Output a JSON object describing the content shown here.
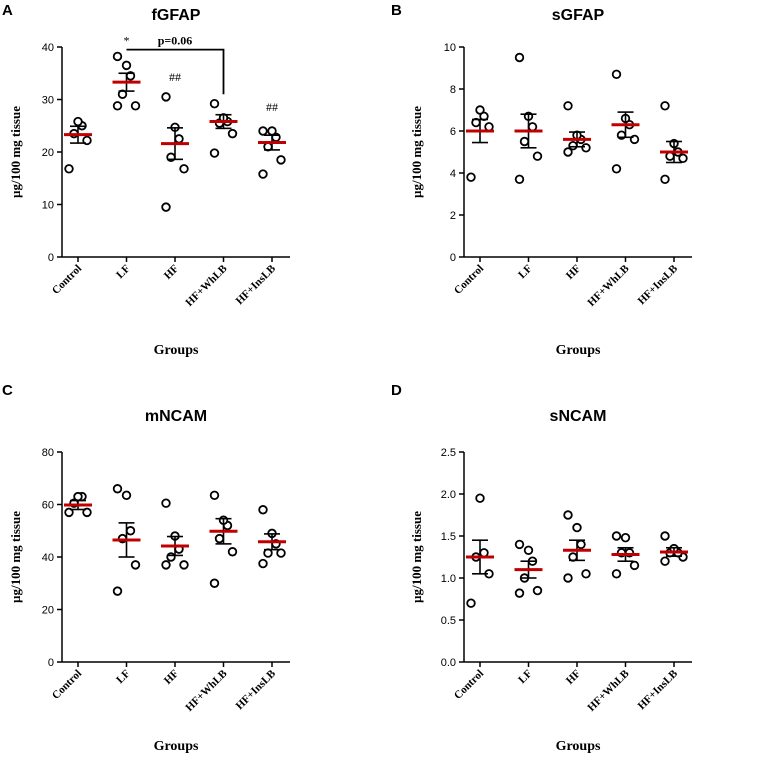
{
  "figure": {
    "categories": [
      "Control",
      "LF",
      "HF",
      "HF+WhLB",
      "HF+InsLB"
    ],
    "ylabel": "µg/100 mg tissue",
    "xlabel": "Groups",
    "mean_color": "#c00000",
    "error_color": "#000000",
    "point_color": "#000000"
  },
  "chart_data": [
    {
      "panel": "A",
      "type": "scatter",
      "title": "fGFAP",
      "xlabel": "Groups",
      "ylabel": "µg/100 mg tissue",
      "categories": [
        "Control",
        "LF",
        "HF",
        "HF+WhLB",
        "HF+InsLB"
      ],
      "ylim": [
        0,
        40
      ],
      "yticks": [
        0,
        10,
        20,
        30,
        40
      ],
      "ytick_labels": [
        "0",
        "10",
        "20",
        "30",
        "40"
      ],
      "points": [
        [
          16.8,
          22.2,
          23.5,
          25.0,
          25.8
        ],
        [
          28.8,
          28.8,
          31.0,
          34.5,
          36.5,
          38.2
        ],
        [
          9.5,
          16.8,
          19.0,
          22.5,
          24.7,
          30.5
        ],
        [
          19.8,
          23.5,
          25.5,
          25.8,
          26.5,
          29.2
        ],
        [
          15.8,
          18.5,
          21.0,
          22.8,
          24.0,
          24.0
        ]
      ],
      "mean": [
        23.3,
        33.3,
        21.6,
        25.8,
        21.8
      ],
      "sem": [
        1.6,
        1.7,
        3.0,
        1.3,
        1.4
      ],
      "annotations": [
        {
          "text": "*",
          "category": 1,
          "y": 40.5
        },
        {
          "text": "##",
          "category": 2,
          "y": 33.5
        },
        {
          "text": "##",
          "category": 4,
          "y": 27.8
        },
        {
          "text": "p=0.06",
          "from": 1,
          "to": 3,
          "y": 39.5,
          "drop_to": 31.0
        }
      ]
    },
    {
      "panel": "B",
      "type": "scatter",
      "title": "sGFAP",
      "xlabel": "Groups",
      "ylabel": "µg/100 mg tissue",
      "categories": [
        "Control",
        "LF",
        "HF",
        "HF+WhLB",
        "HF+InsLB"
      ],
      "ylim": [
        0,
        10
      ],
      "yticks": [
        0,
        2,
        4,
        6,
        8,
        10
      ],
      "ytick_labels": [
        "0",
        "2",
        "4",
        "6",
        "8",
        "10"
      ],
      "points": [
        [
          3.8,
          6.2,
          6.4,
          6.7,
          7.0
        ],
        [
          3.7,
          4.8,
          5.5,
          6.2,
          6.7,
          9.5
        ],
        [
          5.0,
          5.2,
          5.3,
          5.6,
          5.8,
          7.2
        ],
        [
          4.2,
          5.6,
          5.8,
          6.3,
          6.6,
          8.7
        ],
        [
          3.7,
          4.7,
          4.8,
          5.0,
          5.4,
          7.2
        ]
      ],
      "mean": [
        6.0,
        6.0,
        5.6,
        6.3,
        5.0
      ],
      "sem": [
        0.55,
        0.8,
        0.35,
        0.6,
        0.5
      ],
      "annotations": []
    },
    {
      "panel": "C",
      "type": "scatter",
      "title": "mNCAM",
      "xlabel": "Groups",
      "ylabel": "µg/100 mg tissue",
      "categories": [
        "Control",
        "LF",
        "HF",
        "HF+WhLB",
        "HF+InsLB"
      ],
      "ylim": [
        0,
        80
      ],
      "yticks": [
        0,
        20,
        40,
        60,
        80
      ],
      "ytick_labels": [
        "0",
        "20",
        "40",
        "60",
        "80"
      ],
      "points": [
        [
          57.0,
          57.0,
          60.5,
          63.0,
          63.0
        ],
        [
          27.0,
          37.0,
          47.0,
          50.0,
          63.5,
          66.0
        ],
        [
          37.0,
          37.0,
          40.0,
          43.0,
          48.0,
          60.5
        ],
        [
          30.0,
          42.0,
          47.0,
          52.0,
          54.0,
          63.5
        ],
        [
          37.5,
          41.5,
          41.5,
          45.0,
          49.0,
          58.0
        ]
      ],
      "mean": [
        59.8,
        46.5,
        44.2,
        49.8,
        45.8
      ],
      "sem": [
        1.7,
        6.5,
        3.6,
        4.8,
        3.0
      ],
      "annotations": []
    },
    {
      "panel": "D",
      "type": "scatter",
      "title": "sNCAM",
      "xlabel": "Groups",
      "ylabel": "µg/100 mg tissue",
      "categories": [
        "Control",
        "LF",
        "HF",
        "HF+WhLB",
        "HF+InsLB"
      ],
      "ylim": [
        0,
        2.5
      ],
      "yticks": [
        0,
        0.5,
        1.0,
        1.5,
        2.0,
        2.5
      ],
      "ytick_labels": [
        "0.0",
        "0.5",
        "1.0",
        "1.5",
        "2.0",
        "2.5"
      ],
      "points": [
        [
          0.7,
          1.05,
          1.25,
          1.3,
          1.95
        ],
        [
          0.82,
          0.85,
          1.0,
          1.2,
          1.33,
          1.4
        ],
        [
          1.0,
          1.05,
          1.25,
          1.4,
          1.6,
          1.75
        ],
        [
          1.05,
          1.15,
          1.3,
          1.3,
          1.48,
          1.5
        ],
        [
          1.2,
          1.25,
          1.3,
          1.3,
          1.35,
          1.5
        ]
      ],
      "mean": [
        1.25,
        1.1,
        1.33,
        1.28,
        1.31
      ],
      "sem": [
        0.2,
        0.1,
        0.12,
        0.08,
        0.05
      ],
      "annotations": []
    }
  ]
}
